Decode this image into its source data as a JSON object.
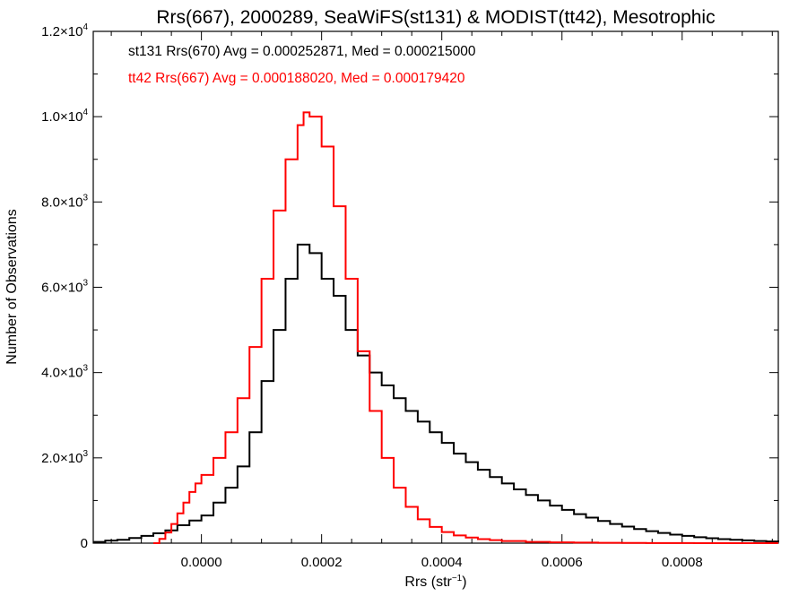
{
  "chart_data": {
    "type": "histogram",
    "title": "Rrs(667), 2000289, SeaWiFS(st131) & MODIST(tt42), Mesotrophic",
    "xlabel": {
      "base": "Rrs (str",
      "sup": "−1",
      "close": ")"
    },
    "ylabel": "Number of Observations",
    "xlim": [
      -0.00018,
      0.00096
    ],
    "ylim": [
      0,
      12000
    ],
    "x_ticks": [
      {
        "value": 0.0,
        "label": "0.0000"
      },
      {
        "value": 0.0002,
        "label": "0.0002"
      },
      {
        "value": 0.0004,
        "label": "0.0004"
      },
      {
        "value": 0.0006,
        "label": "0.0006"
      },
      {
        "value": 0.0008,
        "label": "0.0008"
      }
    ],
    "y_ticks": [
      {
        "value": 0,
        "mant": "0",
        "exp": ""
      },
      {
        "value": 2000,
        "mant": "2.0×10",
        "exp": "3"
      },
      {
        "value": 4000,
        "mant": "4.0×10",
        "exp": "3"
      },
      {
        "value": 6000,
        "mant": "6.0×10",
        "exp": "3"
      },
      {
        "value": 8000,
        "mant": "8.0×10",
        "exp": "3"
      },
      {
        "value": 10000,
        "mant": "1.0×10",
        "exp": "4"
      },
      {
        "value": 12000,
        "mant": "1.2×10",
        "exp": "4"
      }
    ],
    "grid": false,
    "legend_position": "top-left",
    "series": [
      {
        "label": "st131 Rrs(670) Avg = 0.000252871, Med = 0.000215000",
        "color": "#000000",
        "x": [
          -0.00018,
          -0.00016,
          -0.00014,
          -0.00012,
          -0.0001,
          -8e-05,
          -6e-05,
          -4e-05,
          -2e-05,
          0.0,
          2e-05,
          4e-05,
          6e-05,
          8e-05,
          0.0001,
          0.00012,
          0.00014,
          0.00016,
          0.00018,
          0.0002,
          0.00022,
          0.00024,
          0.00026,
          0.00028,
          0.0003,
          0.00032,
          0.00034,
          0.00036,
          0.00038,
          0.0004,
          0.00042,
          0.00044,
          0.00046,
          0.00048,
          0.0005,
          0.00052,
          0.00054,
          0.00056,
          0.00058,
          0.0006,
          0.00062,
          0.00064,
          0.00066,
          0.00068,
          0.0007,
          0.00072,
          0.00074,
          0.00076,
          0.00078,
          0.0008,
          0.00082,
          0.00084,
          0.00086,
          0.00088,
          0.0009,
          0.00092,
          0.00094,
          0.00096
        ],
        "y": [
          30,
          60,
          80,
          120,
          170,
          230,
          300,
          420,
          530,
          650,
          950,
          1300,
          1800,
          2600,
          3800,
          5000,
          6200,
          7000,
          6800,
          6200,
          5800,
          5000,
          4400,
          4000,
          3700,
          3400,
          3100,
          2850,
          2600,
          2350,
          2100,
          1900,
          1720,
          1550,
          1400,
          1260,
          1130,
          1000,
          880,
          780,
          680,
          600,
          520,
          450,
          390,
          330,
          280,
          240,
          200,
          170,
          140,
          115,
          95,
          80,
          65,
          50,
          40,
          30
        ]
      },
      {
        "label": "tt42 Rrs(667) Avg = 0.000188020, Med = 0.000179420",
        "color": "#ff0000",
        "x": [
          -8e-05,
          -7e-05,
          -6e-05,
          -5e-05,
          -4e-05,
          -3e-05,
          -2e-05,
          -1e-05,
          0.0,
          2e-05,
          4e-05,
          6e-05,
          8e-05,
          0.0001,
          0.00012,
          0.00014,
          0.00016,
          0.00017,
          0.00018,
          0.0002,
          0.00022,
          0.00024,
          0.00026,
          0.00028,
          0.0003,
          0.00032,
          0.00034,
          0.00036,
          0.00038,
          0.0004,
          0.00042,
          0.00044,
          0.00046,
          0.00048,
          0.0005,
          0.00054,
          0.00058,
          0.00062,
          0.00066,
          0.0007,
          0.00074,
          0.00078,
          0.00082,
          0.00086,
          0.0009,
          0.00094,
          0.00096
        ],
        "y": [
          0,
          100,
          250,
          450,
          700,
          950,
          1200,
          1400,
          1600,
          2000,
          2600,
          3400,
          4600,
          6200,
          7800,
          9000,
          9800,
          10100,
          10000,
          9300,
          7900,
          6200,
          4500,
          3100,
          2000,
          1300,
          850,
          560,
          380,
          260,
          180,
          130,
          95,
          70,
          50,
          30,
          18,
          12,
          8,
          5,
          3,
          2,
          1,
          0,
          0,
          0,
          0
        ]
      }
    ]
  }
}
